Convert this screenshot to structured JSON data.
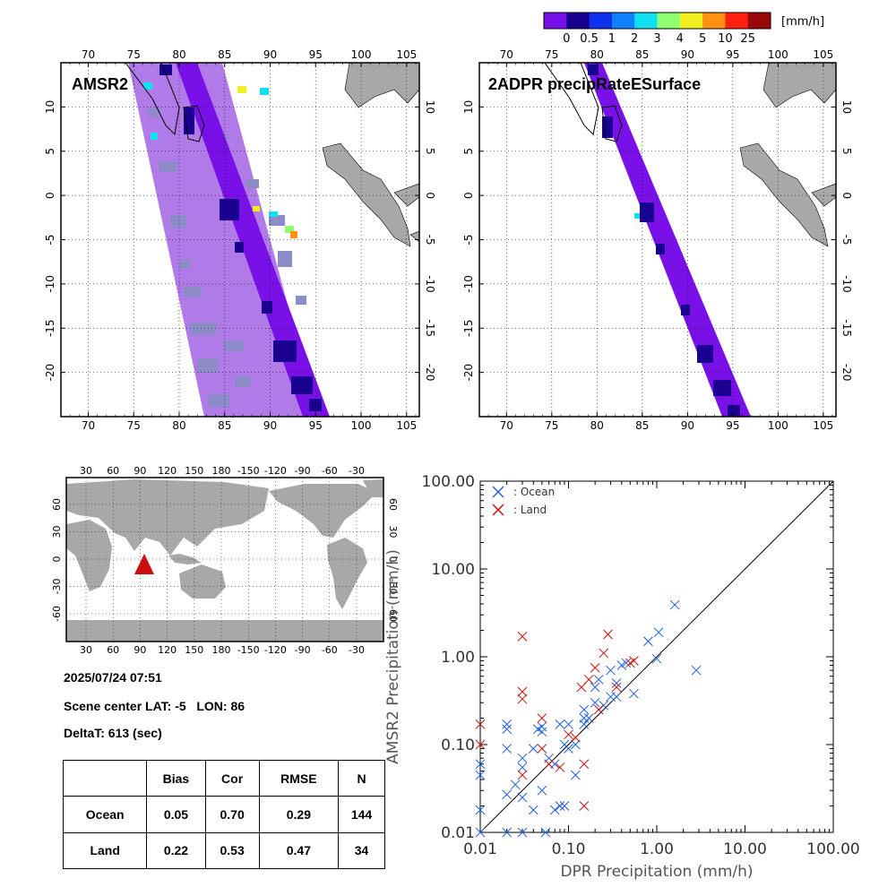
{
  "colorbar": {
    "unit": "[mm/h]",
    "colors": [
      "#7a10e8",
      "#1a0090",
      "#1030f0",
      "#1080ff",
      "#10e0f0",
      "#90ff70",
      "#f0f020",
      "#ff9010",
      "#ff2010",
      "#9a0808"
    ],
    "labels": [
      "0",
      "0.5",
      "1",
      "2",
      "3",
      "4",
      "5",
      "10",
      "25"
    ]
  },
  "panels": {
    "amsr2": {
      "title": "AMSR2",
      "lon_ticks": [
        "70",
        "75",
        "80",
        "85",
        "90",
        "95",
        "100",
        "105"
      ],
      "lat_ticks": [
        "10",
        "5",
        "0",
        "-5",
        "-10",
        "-15",
        "-20"
      ]
    },
    "dpr": {
      "title": "2ADPR precipRateESurface",
      "lon_ticks": [
        "70",
        "75",
        "80",
        "85",
        "90",
        "95",
        "100",
        "105"
      ],
      "lat_ticks": [
        "10",
        "5",
        "0",
        "-5",
        "-10",
        "-15",
        "-20"
      ]
    }
  },
  "world_map": {
    "lon_ticks": [
      "30",
      "60",
      "90",
      "120",
      "150",
      "180",
      "-150",
      "-120",
      "-90",
      "-60",
      "-30"
    ],
    "lat_ticks": [
      "60",
      "30",
      "0",
      "-30",
      "-60"
    ],
    "marker_color": "#cc1010"
  },
  "scene": {
    "datetime": "2025/07/24 07:51",
    "center_prefix": "Scene center LAT:",
    "center_lat": "-5",
    "center_lon_label": "LON:",
    "center_lon": "86",
    "delta_label": "DeltaT:",
    "delta_value": "613 (sec)"
  },
  "stats_table": {
    "headers": [
      "Bias",
      "Cor",
      "RMSE",
      "N"
    ],
    "rows": [
      {
        "label": "Ocean",
        "bias": "0.05",
        "cor": "0.70",
        "rmse": "0.29",
        "n": "144"
      },
      {
        "label": "Land",
        "bias": "0.22",
        "cor": "0.53",
        "rmse": "0.47",
        "n": "34"
      }
    ]
  },
  "chart_data": {
    "type": "scatter",
    "xlabel": "DPR Precipitation (mm/h)",
    "ylabel": "AMSR2 Precipitation (mm/h)",
    "xscale": "log",
    "yscale": "log",
    "xlim": [
      0.01,
      100
    ],
    "ylim": [
      0.01,
      100
    ],
    "tick_labels": [
      "0.01",
      "0.10",
      "1.00",
      "10.00",
      "100.00"
    ],
    "legend_placement": "top-left",
    "grid": false,
    "series": [
      {
        "name": ": Ocean",
        "color": "#2060e0",
        "points": [
          [
            0.01,
            0.01
          ],
          [
            0.01,
            0.018
          ],
          [
            0.01,
            0.045
          ],
          [
            0.01,
            0.06
          ],
          [
            0.02,
            0.01
          ],
          [
            0.02,
            0.027
          ],
          [
            0.02,
            0.09
          ],
          [
            0.02,
            0.15
          ],
          [
            0.02,
            0.17
          ],
          [
            0.025,
            0.035
          ],
          [
            0.03,
            0.01
          ],
          [
            0.03,
            0.025
          ],
          [
            0.03,
            0.055
          ],
          [
            0.03,
            0.07
          ],
          [
            0.04,
            0.018
          ],
          [
            0.04,
            0.09
          ],
          [
            0.045,
            0.15
          ],
          [
            0.05,
            0.03
          ],
          [
            0.05,
            0.14
          ],
          [
            0.05,
            0.16
          ],
          [
            0.055,
            0.01
          ],
          [
            0.06,
            0.07
          ],
          [
            0.07,
            0.018
          ],
          [
            0.07,
            0.06
          ],
          [
            0.08,
            0.02
          ],
          [
            0.08,
            0.17
          ],
          [
            0.09,
            0.02
          ],
          [
            0.09,
            0.1
          ],
          [
            0.1,
            0.09
          ],
          [
            0.1,
            0.17
          ],
          [
            0.12,
            0.045
          ],
          [
            0.12,
            0.1
          ],
          [
            0.15,
            0.2
          ],
          [
            0.15,
            0.17
          ],
          [
            0.15,
            0.25
          ],
          [
            0.17,
            0.2
          ],
          [
            0.2,
            0.3
          ],
          [
            0.2,
            0.45
          ],
          [
            0.22,
            0.55
          ],
          [
            0.25,
            0.28
          ],
          [
            0.3,
            0.35
          ],
          [
            0.3,
            0.7
          ],
          [
            0.35,
            0.35
          ],
          [
            0.35,
            0.5
          ],
          [
            0.4,
            0.8
          ],
          [
            0.45,
            0.85
          ],
          [
            0.55,
            0.38
          ],
          [
            0.8,
            1.5
          ],
          [
            1.0,
            0.95
          ],
          [
            1.05,
            1.9
          ],
          [
            1.6,
            3.9
          ],
          [
            2.8,
            0.7
          ]
        ]
      },
      {
        "name": ": Land",
        "color": "#cc1010",
        "points": [
          [
            0.01,
            0.1
          ],
          [
            0.01,
            0.17
          ],
          [
            0.03,
            0.4
          ],
          [
            0.03,
            0.33
          ],
          [
            0.03,
            1.7
          ],
          [
            0.03,
            0.045
          ],
          [
            0.05,
            0.2
          ],
          [
            0.05,
            0.09
          ],
          [
            0.06,
            0.06
          ],
          [
            0.08,
            0.055
          ],
          [
            0.1,
            0.13
          ],
          [
            0.12,
            0.12
          ],
          [
            0.14,
            0.45
          ],
          [
            0.15,
            0.06
          ],
          [
            0.15,
            0.02
          ],
          [
            0.17,
            0.55
          ],
          [
            0.2,
            0.75
          ],
          [
            0.22,
            0.25
          ],
          [
            0.25,
            1.1
          ],
          [
            0.28,
            1.8
          ],
          [
            0.35,
            0.45
          ],
          [
            0.5,
            0.85
          ],
          [
            0.55,
            0.9
          ]
        ]
      }
    ]
  }
}
